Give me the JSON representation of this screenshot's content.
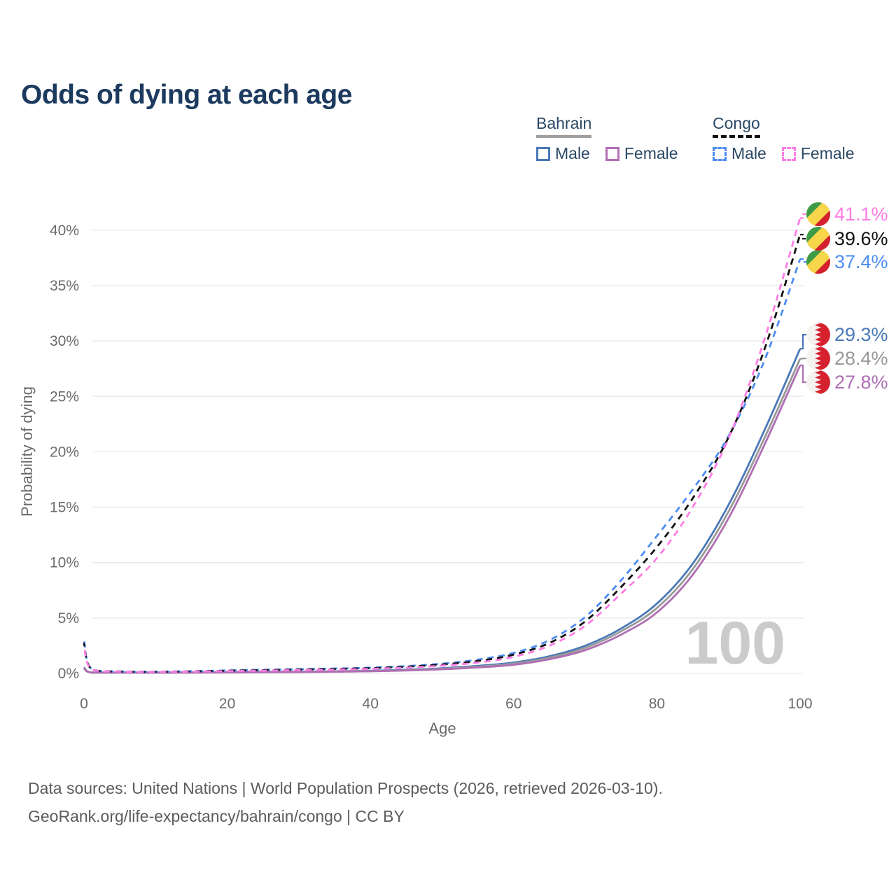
{
  "title": "Odds of dying at each age",
  "legend": {
    "groups": [
      {
        "country": "Bahrain",
        "line_style": "solid",
        "underline_color": "#9e9e9e",
        "items": [
          {
            "label": "Male",
            "color": "#4a79b8"
          },
          {
            "label": "Female",
            "color": "#b06fb3"
          }
        ]
      },
      {
        "country": "Congo",
        "line_style": "dashed",
        "underline_color": "#111111",
        "items": [
          {
            "label": "Male",
            "color": "#4d8df2"
          },
          {
            "label": "Female",
            "color": "#ff7ce5"
          }
        ]
      }
    ]
  },
  "watermark": "100",
  "chart_data": {
    "type": "line",
    "title": "Odds of dying at each age",
    "xlabel": "Age",
    "ylabel": "Probability of dying",
    "xlim": [
      0,
      100
    ],
    "ylim": [
      0,
      42.5
    ],
    "xticks": [
      0,
      20,
      40,
      60,
      80,
      100
    ],
    "yticks": [
      0,
      5,
      10,
      15,
      20,
      25,
      30,
      35,
      40
    ],
    "ytick_suffix": "%",
    "grid": "horizontal",
    "x_ages": [
      0,
      1,
      5,
      10,
      15,
      20,
      25,
      30,
      35,
      40,
      45,
      50,
      55,
      60,
      65,
      70,
      75,
      80,
      85,
      90,
      95,
      100
    ],
    "unit": "percent",
    "series": [
      {
        "name": "Bahrain Male",
        "country": "Bahrain",
        "sex": "male",
        "flag": "bahrain",
        "color": "#4a79b8",
        "line_style": "solid",
        "values": [
          0.55,
          0.06,
          0.04,
          0.05,
          0.08,
          0.12,
          0.14,
          0.16,
          0.19,
          0.24,
          0.33,
          0.47,
          0.68,
          0.98,
          1.55,
          2.5,
          4.05,
          6.3,
          9.9,
          15.2,
          21.9,
          29.3
        ],
        "end_value": 29.3,
        "end_label": "29.3%",
        "label_pos": 30.57
      },
      {
        "name": "Bahrain Both sexes",
        "country": "Bahrain",
        "sex": "both",
        "flag": "bahrain",
        "color": "#999999",
        "line_style": "solid",
        "values": [
          0.5,
          0.055,
          0.035,
          0.045,
          0.07,
          0.1,
          0.12,
          0.14,
          0.17,
          0.21,
          0.29,
          0.42,
          0.61,
          0.88,
          1.42,
          2.3,
          3.8,
          5.9,
          9.4,
          14.6,
          21.2,
          28.4
        ],
        "end_value": 28.4,
        "end_label": "28.4%",
        "label_pos": 28.43
      },
      {
        "name": "Bahrain Female",
        "country": "Bahrain",
        "sex": "female",
        "flag": "bahrain",
        "color": "#b06fb3",
        "line_style": "solid",
        "values": [
          0.45,
          0.05,
          0.03,
          0.04,
          0.06,
          0.08,
          0.1,
          0.12,
          0.15,
          0.19,
          0.26,
          0.37,
          0.54,
          0.78,
          1.28,
          2.1,
          3.5,
          5.5,
          8.9,
          14.0,
          20.6,
          27.8
        ],
        "end_value": 27.8,
        "end_label": "27.8%",
        "label_pos": 26.28
      },
      {
        "name": "Congo Male",
        "country": "Congo",
        "sex": "male",
        "flag": "congo",
        "color": "#4d8df2",
        "line_style": "dashed",
        "values": [
          2.95,
          0.45,
          0.18,
          0.15,
          0.2,
          0.27,
          0.33,
          0.38,
          0.44,
          0.52,
          0.66,
          0.88,
          1.25,
          1.85,
          3.0,
          5.1,
          8.4,
          12.4,
          16.6,
          21.4,
          28.2,
          37.4
        ],
        "end_value": 37.4,
        "end_label": "37.4%",
        "label_pos": 37.14
      },
      {
        "name": "Congo Both sexes",
        "country": "Congo",
        "sex": "both",
        "flag": "congo",
        "color": "#111111",
        "line_style": "dashed",
        "values": [
          2.75,
          0.42,
          0.17,
          0.14,
          0.18,
          0.24,
          0.29,
          0.34,
          0.4,
          0.47,
          0.6,
          0.8,
          1.12,
          1.7,
          2.75,
          4.7,
          7.8,
          11.4,
          15.8,
          21.3,
          29.2,
          39.6
        ],
        "end_value": 39.6,
        "end_label": "39.6%",
        "label_pos": 39.23
      },
      {
        "name": "Congo Female",
        "country": "Congo",
        "sex": "female",
        "flag": "congo",
        "color": "#ff7ce5",
        "line_style": "dashed",
        "values": [
          2.55,
          0.4,
          0.16,
          0.13,
          0.16,
          0.21,
          0.25,
          0.29,
          0.34,
          0.41,
          0.52,
          0.7,
          0.98,
          1.5,
          2.5,
          4.3,
          7.2,
          10.4,
          15.0,
          21.2,
          30.1,
          41.1
        ],
        "end_value": 41.1,
        "end_label": "41.1%",
        "label_pos": 41.44
      }
    ]
  },
  "flags": {
    "congo": {
      "green": "#3d9b47",
      "yellow": "#f7d64a",
      "red": "#d4212d"
    },
    "bahrain": {
      "white": "#f5f3f0",
      "red": "#d6222f"
    }
  },
  "footer": {
    "line1": "Data sources: United Nations | World Population Prospects (2026, retrieved 2026-03-10).",
    "line2": "GeoRank.org/life-expectancy/bahrain/congo | CC BY"
  }
}
